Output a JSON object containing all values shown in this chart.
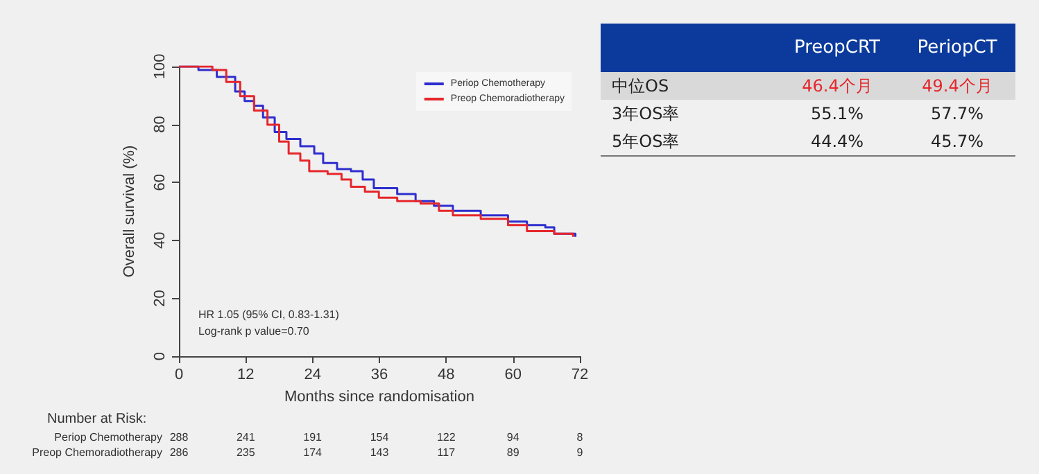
{
  "chart_data": [
    {
      "type": "step",
      "xlabel": "Months since randomisation",
      "ylabel": "Overall survival (%)",
      "xlim": [
        0,
        72
      ],
      "xticks": [
        0,
        12,
        24,
        36,
        48,
        60,
        72
      ],
      "ylim": [
        0,
        100
      ],
      "yticks": [
        0,
        20,
        40,
        60,
        80,
        100
      ],
      "grid": false,
      "legend": "top right",
      "annotations": [
        "HR 1.05 (95% CI, 0.83-1.31)",
        "Log-rank p value=0.70"
      ],
      "series": [
        {
          "name": "Periop Chemotherapy",
          "color": "#2e2ecf",
          "x": [
            0,
            3.5,
            6.8,
            10.1,
            11.8,
            13.5,
            15.1,
            17.2,
            19.3,
            21.8,
            24.3,
            25.9,
            28.4,
            30.9,
            33,
            35,
            39.2,
            42.5,
            45.8,
            49.2,
            54.2,
            59.1,
            62.5,
            65.8,
            67.4,
            70.8,
            71.2
          ],
          "values": [
            100,
            98.8,
            96.4,
            91.4,
            88.1,
            86.5,
            82.4,
            77.4,
            75,
            72.5,
            70,
            66.7,
            64.6,
            63.9,
            61,
            58,
            56,
            53.5,
            51.9,
            50.2,
            48.6,
            46.5,
            45.3,
            44.5,
            42.3,
            42.3,
            41.2
          ]
        },
        {
          "name": "Preop Chemoradiotherapy",
          "color": "#e5262b",
          "x": [
            0,
            4.3,
            6,
            8.5,
            11,
            13.5,
            15.9,
            18,
            19.7,
            21.8,
            23.4,
            26.7,
            29.2,
            30.9,
            33.4,
            35.9,
            39.2,
            43.4,
            46.7,
            49.2,
            54.2,
            59.1,
            62.5,
            67.4,
            70.8
          ],
          "values": [
            100,
            100,
            98.8,
            94.7,
            89.8,
            84.8,
            79.9,
            74.1,
            70,
            67.5,
            63.9,
            62.9,
            61,
            58.5,
            56.8,
            54.7,
            53.5,
            52.7,
            50.2,
            48.6,
            47.4,
            45.3,
            43.2,
            42.3,
            41.2
          ]
        }
      ]
    },
    {
      "type": "other",
      "title": "Number at Risk:",
      "y_categories": [
        "Periop Chemotherapy",
        "Preop Chemoradiotherapy"
      ],
      "cell_labels": [
        [
          "288",
          "241",
          "191",
          "154",
          "122",
          "94",
          "8"
        ],
        [
          "286",
          "235",
          "174",
          "143",
          "117",
          "89",
          "9"
        ]
      ]
    },
    {
      "type": "other",
      "categories": [
        "PreopCRT",
        "PeriopCT"
      ],
      "y_categories": [
        "中位OS",
        "3年OS率",
        "5年OS率"
      ],
      "cell_labels": [
        [
          "46.4个月",
          "49.4个月"
        ],
        [
          "55.1%",
          "57.7%"
        ],
        [
          "44.4%",
          "45.7%"
        ]
      ]
    }
  ]
}
